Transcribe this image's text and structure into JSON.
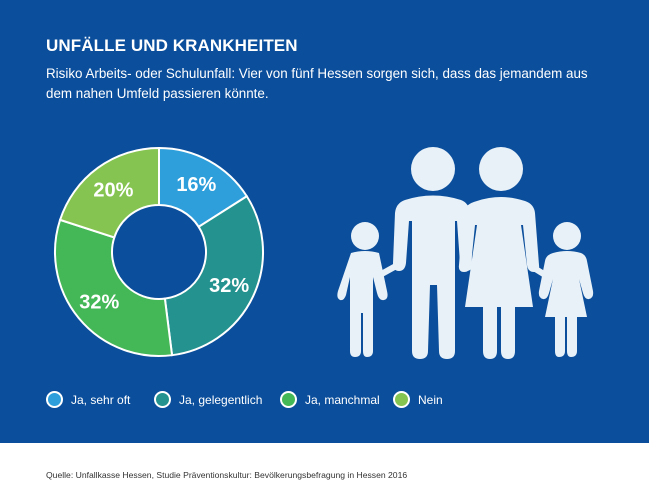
{
  "header": {
    "title": "UNFÄLLE UND KRANKHEITEN",
    "subtitle": "Risiko Arbeits- oder Schulunfall: Vier von fünf Hessen sorgen sich, dass das jemandem aus dem nahen Umfeld passieren könnte."
  },
  "chart_data": {
    "type": "pie",
    "donut": true,
    "categories": [
      "Ja, sehr oft",
      "Ja, gelegentlich",
      "Ja, manchmal",
      "Nein"
    ],
    "values": [
      16,
      32,
      32,
      20
    ],
    "labels": [
      "16%",
      "32%",
      "32%",
      "20%"
    ],
    "colors": [
      "#2E9FDB",
      "#24938F",
      "#44B757",
      "#86C451"
    ],
    "legend_position": "bottom"
  },
  "colors": {
    "background": "#0B4E9B",
    "family": "#E8F1F8"
  },
  "icons": [
    "family-icon"
  ],
  "footer": {
    "source": "Quelle: Unfallkasse Hessen, Studie Präventionskultur: Bevölkerungsbefragung in Hessen 2016"
  }
}
